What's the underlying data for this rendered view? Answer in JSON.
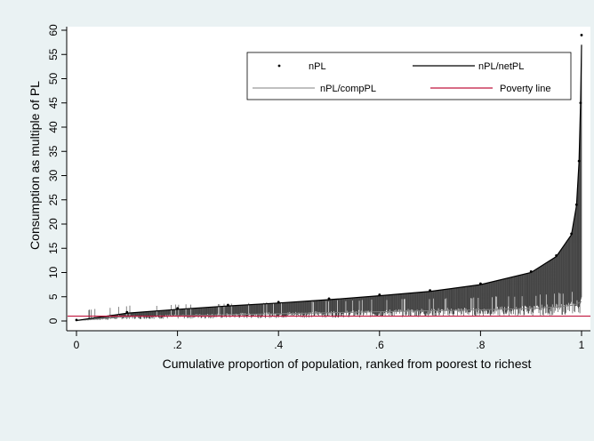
{
  "chart_data": {
    "type": "line",
    "title": "",
    "xlabel": "Cumulative proportion of population, ranked from poorest to richest",
    "ylabel": "Consumption as multiple of PL",
    "xlim": [
      0,
      1
    ],
    "ylim": [
      0,
      60
    ],
    "x_ticks": [
      0,
      0.2,
      0.4,
      0.6,
      0.8,
      1
    ],
    "x_tick_labels": [
      "0",
      ".2",
      ".4",
      ".6",
      ".8",
      "1"
    ],
    "y_ticks": [
      0,
      5,
      10,
      15,
      20,
      25,
      30,
      35,
      40,
      45,
      50,
      55,
      60
    ],
    "y_tick_labels": [
      "0",
      "5",
      "10",
      "15",
      "20",
      "25",
      "30",
      "35",
      "40",
      "45",
      "50",
      "55",
      "60"
    ],
    "grid": false,
    "legend_position": "top-right",
    "series": [
      {
        "name": "nPL",
        "style": "points",
        "color": "#000000",
        "x": [
          0,
          0.1,
          0.2,
          0.3,
          0.4,
          0.5,
          0.6,
          0.7,
          0.8,
          0.9,
          0.95,
          0.98,
          0.99,
          0.995,
          0.998,
          1
        ],
        "y": [
          0.2,
          1.8,
          2.6,
          3.3,
          3.9,
          4.6,
          5.4,
          6.3,
          7.7,
          10.2,
          13.5,
          18,
          24,
          33,
          45,
          59
        ]
      },
      {
        "name": "nPL/netPL",
        "style": "line",
        "color": "#000000",
        "x": [
          0,
          0.1,
          0.2,
          0.3,
          0.4,
          0.5,
          0.6,
          0.7,
          0.8,
          0.9,
          0.95,
          0.98,
          0.99,
          0.995,
          0.998,
          1
        ],
        "y": [
          0.1,
          1.6,
          2.4,
          3.1,
          3.7,
          4.4,
          5.2,
          6.1,
          7.5,
          10,
          13.3,
          17.8,
          23.8,
          32.8,
          44.8,
          57
        ]
      },
      {
        "name": "nPL/compPL",
        "style": "line",
        "color": "#808080",
        "x": [
          0,
          0.1,
          0.2,
          0.3,
          0.4,
          0.5,
          0.6,
          0.7,
          0.8,
          0.9,
          0.95,
          0.98,
          0.99,
          1
        ],
        "y": [
          0.1,
          0.9,
          1.1,
          1.3,
          1.5,
          1.7,
          1.9,
          2.1,
          2.3,
          2.6,
          2.9,
          3.2,
          3.5,
          4
        ]
      },
      {
        "name": "Poverty line",
        "style": "line",
        "color": "#c0143c",
        "x": [
          0,
          1
        ],
        "y": [
          1,
          1
        ]
      }
    ]
  }
}
